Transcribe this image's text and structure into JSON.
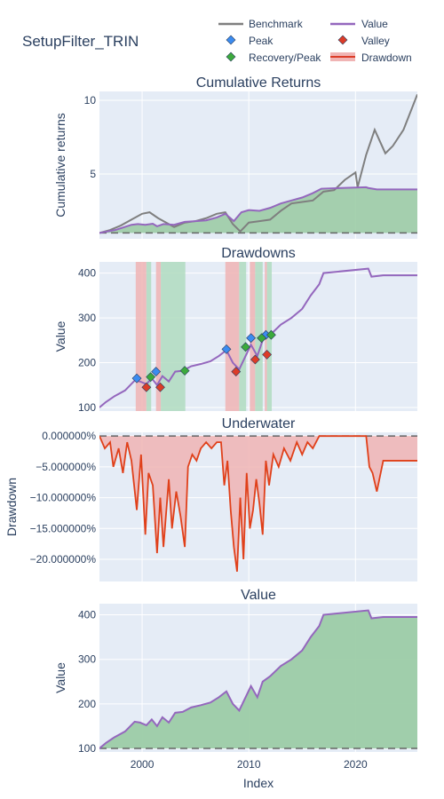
{
  "figure_title": "SetupFilter_TRIN",
  "legend": {
    "benchmark": "Benchmark",
    "value": "Value",
    "peak": "Peak",
    "valley": "Valley",
    "recovery": "Recovery/Peak",
    "drawdown": "Drawdown"
  },
  "colors": {
    "plot_bg": "#e5ecf6",
    "benchmark": "#7f7f7f",
    "value": "#9467bd",
    "peak": "#3c8cf0",
    "valley": "#dc3c28",
    "recovery": "#3caa3c",
    "drawdown_fill": "#dc3c28",
    "underwater_line": "#e0401a",
    "green_fill": "#9ccca6",
    "red_band": "#f0b4b4",
    "green_band": "#b0dcc0"
  },
  "chart_data": [
    {
      "type": "line",
      "title": "Cumulative Returns",
      "ylabel": "Cumulative returns",
      "xlim": [
        1996,
        2025.8
      ],
      "ylim": [
        0.6,
        10.6
      ],
      "yticks": [
        "5",
        "10"
      ],
      "ytick_values": [
        5,
        10
      ],
      "baseline": 1,
      "series": [
        {
          "name": "Benchmark",
          "x": [
            1996,
            1997,
            1998,
            1999,
            2000,
            2000.7,
            2001.5,
            2002.5,
            2003,
            2004,
            2005,
            2006,
            2007,
            2007.8,
            2008.5,
            2009.2,
            2010,
            2011,
            2012,
            2013,
            2014,
            2015,
            2016,
            2017,
            2018,
            2019,
            2020,
            2020.2,
            2021,
            2021.8,
            2022.8,
            2023.5,
            2024.5,
            2025.8
          ],
          "y": [
            1.0,
            1.2,
            1.5,
            1.9,
            2.3,
            2.4,
            2.0,
            1.6,
            1.4,
            1.7,
            1.8,
            2.0,
            2.3,
            2.4,
            1.6,
            1.1,
            1.7,
            1.8,
            1.9,
            2.5,
            3.0,
            3.1,
            3.2,
            3.8,
            3.9,
            4.6,
            5.1,
            4.1,
            6.3,
            8.0,
            6.4,
            6.9,
            8.0,
            10.4
          ]
        },
        {
          "name": "Value",
          "x": [
            1996,
            1997.5,
            1999,
            1999.6,
            2000.3,
            2001,
            2001.4,
            2002,
            2003,
            2004,
            2005,
            2006,
            2007,
            2007.8,
            2008.6,
            2009.3,
            2010,
            2011,
            2012,
            2013,
            2014,
            2015,
            2016,
            2016.8,
            2021,
            2021.2,
            2022,
            2025.8
          ],
          "y": [
            1.0,
            1.2,
            1.55,
            1.6,
            1.55,
            1.62,
            1.45,
            1.6,
            1.55,
            1.75,
            1.8,
            1.85,
            2.05,
            2.3,
            1.8,
            2.4,
            2.55,
            2.5,
            2.7,
            3.0,
            3.2,
            3.4,
            3.7,
            4.0,
            4.1,
            4.05,
            3.95,
            3.95
          ]
        }
      ]
    },
    {
      "type": "line",
      "title": "Drawdowns",
      "ylabel": "Value",
      "xlim": [
        1996,
        2025.8
      ],
      "ylim": [
        92,
        425
      ],
      "yticks": [
        "100",
        "200",
        "300",
        "400"
      ],
      "ytick_values": [
        100,
        200,
        300,
        400
      ],
      "series": [
        {
          "name": "Value",
          "x": [
            1996,
            1996.6,
            1997.4,
            1998.4,
            1999.3,
            1999.8,
            2000.4,
            2000.9,
            2001.4,
            2001.9,
            2002.5,
            2003.1,
            2003.8,
            2004.6,
            2005.5,
            2006.4,
            2007.2,
            2007.9,
            2008.5,
            2009.1,
            2009.7,
            2010.2,
            2010.8,
            2011.3,
            2012,
            2013,
            2014,
            2015,
            2015.8,
            2016.6,
            2017,
            2021.2,
            2021.5,
            2022.6,
            2025.8
          ],
          "y": [
            100,
            112,
            125,
            138,
            160,
            158,
            152,
            165,
            150,
            170,
            158,
            180,
            182,
            192,
            197,
            203,
            215,
            228,
            200,
            185,
            215,
            240,
            215,
            250,
            262,
            285,
            300,
            320,
            350,
            375,
            400,
            410,
            392,
            395,
            395
          ]
        }
      ],
      "peaks": {
        "x": [
          1999.5,
          2001.3,
          2007.9,
          2010.2,
          2011.6
        ],
        "y": [
          165,
          180,
          230,
          255,
          262
        ]
      },
      "valleys": {
        "x": [
          2000.4,
          2001.7,
          2008.8,
          2010.6,
          2011.7
        ],
        "y": [
          145,
          145,
          180,
          207,
          218
        ]
      },
      "recoveries": {
        "x": [
          2000.8,
          2004,
          2009.7,
          2011.2,
          2012.1
        ],
        "y": [
          168,
          182,
          235,
          255,
          262
        ]
      },
      "drawdown_bands": [
        [
          1999.4,
          2000.4
        ],
        [
          2001.3,
          2001.75
        ],
        [
          2007.8,
          2009.1
        ],
        [
          2010.1,
          2010.6
        ],
        [
          2011.5,
          2011.7
        ]
      ],
      "recovery_bands": [
        [
          2000.4,
          2000.85
        ],
        [
          2001.75,
          2004.05
        ],
        [
          2009.1,
          2009.75
        ],
        [
          2010.6,
          2011.3
        ],
        [
          2011.7,
          2012.15
        ]
      ]
    },
    {
      "type": "area",
      "title": "Underwater",
      "ylabel": "Drawdown",
      "xlim": [
        1996,
        2025.8
      ],
      "ylim": [
        -23.6,
        0.6
      ],
      "yticks": [
        "0.000000%",
        "−5.000000%",
        "−10.000000%",
        "−15.000000%",
        "−20.000000%"
      ],
      "ytick_values": [
        0,
        -5,
        -10,
        -15,
        -20
      ],
      "series": [
        {
          "name": "Drawdown",
          "x": [
            1996,
            1996.5,
            1997,
            1997.3,
            1997.8,
            1998.2,
            1998.6,
            1999,
            1999.5,
            1999.9,
            2000.3,
            2000.6,
            2001,
            2001.4,
            2001.7,
            2002,
            2002.5,
            2002.8,
            2003.2,
            2003.6,
            2004,
            2004.3,
            2004.7,
            2005.1,
            2005.5,
            2006,
            2006.5,
            2007,
            2007.4,
            2007.7,
            2008,
            2008.3,
            2008.6,
            2008.9,
            2009.2,
            2009.5,
            2009.8,
            2010.1,
            2010.4,
            2010.7,
            2011,
            2011.3,
            2011.6,
            2011.9,
            2012.3,
            2012.8,
            2013.3,
            2013.9,
            2014.5,
            2015,
            2015.5,
            2016,
            2016.6,
            2017,
            2018,
            2019,
            2020,
            2021,
            2021.3,
            2021.6,
            2022,
            2022.6,
            2023,
            2025.8
          ],
          "y": [
            0,
            -2,
            -1,
            -5,
            -2,
            -6,
            -1,
            -4,
            -12,
            -3,
            -16,
            -6,
            -8,
            -19,
            -10,
            -18,
            -7,
            -15,
            -9,
            -13,
            -18,
            -5,
            -3,
            -4,
            -2,
            -1,
            -2,
            -1,
            -1,
            -8,
            -4,
            -12,
            -18,
            -22,
            -10,
            -20,
            -6,
            -15,
            -12,
            -7,
            -11,
            -16,
            -4,
            -8,
            -3,
            -5,
            -2,
            -4,
            -1,
            -3,
            -1,
            -2,
            0,
            0,
            0,
            0,
            0,
            0,
            -5,
            -6,
            -9,
            -4,
            -4,
            -4
          ]
        }
      ]
    },
    {
      "type": "area",
      "title": "Value",
      "ylabel": "Value",
      "xlabel": "Index",
      "xlim": [
        1996,
        2025.8
      ],
      "ylim": [
        92,
        425
      ],
      "xticks": [
        "2000",
        "2010",
        "2020"
      ],
      "xtick_values": [
        2000,
        2010,
        2020
      ],
      "yticks": [
        "100",
        "200",
        "300",
        "400"
      ],
      "ytick_values": [
        100,
        200,
        300,
        400
      ],
      "baseline": 100,
      "series": [
        {
          "name": "Value",
          "x": [
            1996,
            1996.6,
            1997.4,
            1998.4,
            1999.3,
            1999.8,
            2000.4,
            2000.9,
            2001.4,
            2001.9,
            2002.5,
            2003.1,
            2003.8,
            2004.6,
            2005.5,
            2006.4,
            2007.2,
            2007.9,
            2008.5,
            2009.1,
            2009.7,
            2010.2,
            2010.8,
            2011.3,
            2012,
            2013,
            2014,
            2015,
            2015.8,
            2016.6,
            2017,
            2021.2,
            2021.5,
            2022.6,
            2025.8
          ],
          "y": [
            100,
            112,
            125,
            138,
            160,
            158,
            152,
            165,
            150,
            170,
            158,
            180,
            182,
            192,
            197,
            203,
            215,
            228,
            200,
            185,
            215,
            240,
            215,
            250,
            262,
            285,
            300,
            320,
            350,
            375,
            400,
            410,
            392,
            395,
            395
          ]
        }
      ]
    }
  ]
}
